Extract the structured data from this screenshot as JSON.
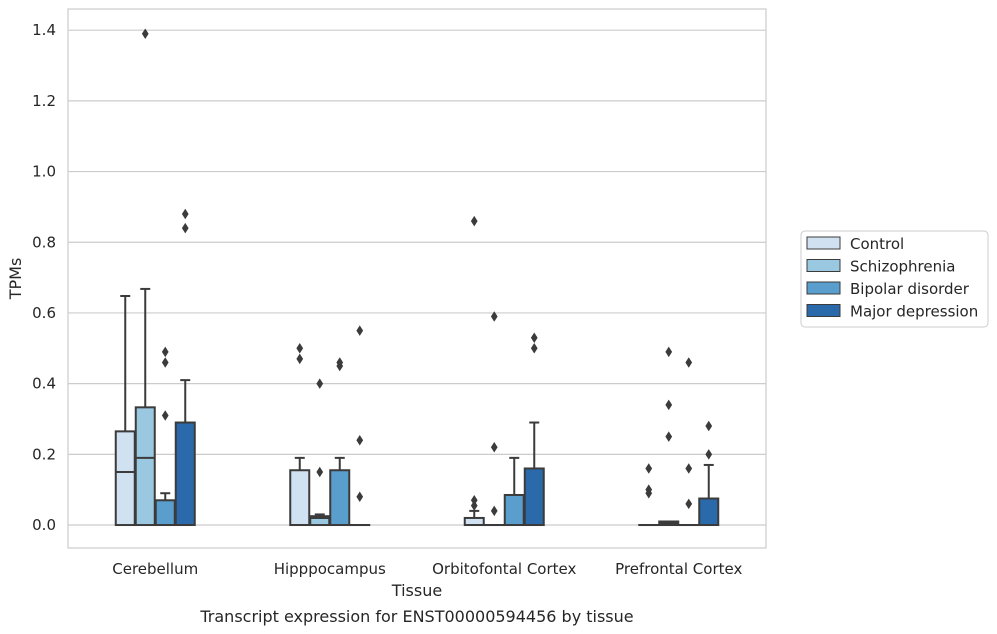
{
  "chart_data": {
    "type": "boxplot",
    "title": "Transcript expression for ENST00000594456 by tissue",
    "xlabel": "Tissue",
    "ylabel": "TPMs",
    "ylim": [
      -0.065,
      1.46
    ],
    "yticks": [
      0.0,
      0.2,
      0.4,
      0.6,
      0.8,
      1.0,
      1.2,
      1.4
    ],
    "ytick_labels": [
      "0.0",
      "0.2",
      "0.4",
      "0.6",
      "0.8",
      "1.0",
      "1.2",
      "1.4"
    ],
    "grid": "horizontal",
    "legend_position": "right",
    "categories": [
      "Cerebellum",
      "Hipppocampus",
      "Orbitofontal Cortex",
      "Prefrontal Cortex"
    ],
    "series": [
      {
        "name": "Control",
        "color": "#d0e1f2",
        "boxes": [
          {
            "q1": 0.0,
            "median": 0.15,
            "q3": 0.265,
            "whisker_low": 0.0,
            "whisker_high": 0.648,
            "outliers": []
          },
          {
            "q1": 0.0,
            "median": 0.0,
            "q3": 0.155,
            "whisker_low": 0.0,
            "whisker_high": 0.19,
            "outliers": [
              0.47,
              0.5
            ]
          },
          {
            "q1": 0.0,
            "median": 0.0,
            "q3": 0.02,
            "whisker_low": 0.0,
            "whisker_high": 0.04,
            "outliers": [
              0.055,
              0.07,
              0.86
            ]
          },
          {
            "q1": 0.0,
            "median": 0.0,
            "q3": 0.0,
            "whisker_low": 0.0,
            "whisker_high": 0.0,
            "outliers": [
              0.09,
              0.1,
              0.16
            ]
          }
        ]
      },
      {
        "name": "Schizophrenia",
        "color": "#9ac8e0",
        "boxes": [
          {
            "q1": 0.0,
            "median": 0.19,
            "q3": 0.333,
            "whisker_low": 0.0,
            "whisker_high": 0.668,
            "outliers": [
              1.39
            ]
          },
          {
            "q1": 0.0,
            "median": 0.02,
            "q3": 0.025,
            "whisker_low": 0.0,
            "whisker_high": 0.03,
            "outliers": [
              0.15,
              0.4
            ]
          },
          {
            "q1": 0.0,
            "median": 0.0,
            "q3": 0.0,
            "whisker_low": 0.0,
            "whisker_high": 0.0,
            "outliers": [
              0.04,
              0.22,
              0.59
            ]
          },
          {
            "q1": 0.0,
            "median": 0.005,
            "q3": 0.01,
            "whisker_low": 0.0,
            "whisker_high": 0.01,
            "outliers": [
              0.25,
              0.34,
              0.49
            ]
          }
        ]
      },
      {
        "name": "Bipolar disorder",
        "color": "#5a9ecd",
        "boxes": [
          {
            "q1": 0.0,
            "median": 0.0,
            "q3": 0.07,
            "whisker_low": 0.0,
            "whisker_high": 0.09,
            "outliers": [
              0.31,
              0.46,
              0.49
            ]
          },
          {
            "q1": 0.0,
            "median": 0.0,
            "q3": 0.155,
            "whisker_low": 0.0,
            "whisker_high": 0.19,
            "outliers": [
              0.45,
              0.46
            ]
          },
          {
            "q1": 0.0,
            "median": 0.0,
            "q3": 0.085,
            "whisker_low": 0.0,
            "whisker_high": 0.19,
            "outliers": []
          },
          {
            "q1": 0.0,
            "median": 0.0,
            "q3": 0.0,
            "whisker_low": 0.0,
            "whisker_high": 0.0,
            "outliers": [
              0.06,
              0.16,
              0.46
            ]
          }
        ]
      },
      {
        "name": "Major depression",
        "color": "#2b6aaa",
        "boxes": [
          {
            "q1": 0.0,
            "median": 0.0,
            "q3": 0.29,
            "whisker_low": 0.0,
            "whisker_high": 0.41,
            "outliers": [
              0.84,
              0.88
            ]
          },
          {
            "q1": 0.0,
            "median": 0.0,
            "q3": 0.0,
            "whisker_low": 0.0,
            "whisker_high": 0.0,
            "outliers": [
              0.08,
              0.24,
              0.55
            ]
          },
          {
            "q1": 0.0,
            "median": 0.0,
            "q3": 0.16,
            "whisker_low": 0.0,
            "whisker_high": 0.29,
            "outliers": [
              0.5,
              0.53
            ]
          },
          {
            "q1": 0.0,
            "median": 0.0,
            "q3": 0.075,
            "whisker_low": 0.0,
            "whisker_high": 0.17,
            "outliers": [
              0.2,
              0.28
            ]
          }
        ]
      }
    ]
  }
}
